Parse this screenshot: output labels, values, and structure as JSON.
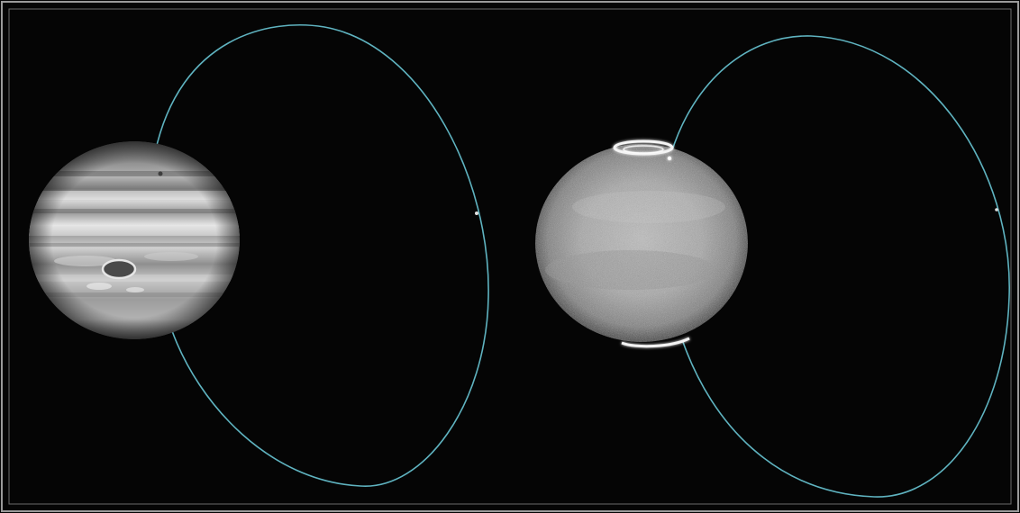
{
  "image": {
    "background_color": "#000000",
    "border_color": "#9a9a9a",
    "orbit_color": "#5fb3c0",
    "panels": [
      {
        "subject": "planet-visible-light",
        "features": [
          "cloud-bands",
          "great-red-spot",
          "moon-orbit-loop",
          "moon-dot"
        ]
      },
      {
        "subject": "planet-ultraviolet-aurora",
        "features": [
          "north-auroral-oval",
          "south-auroral-oval",
          "moon-orbit-loop",
          "moon-footprint-dot"
        ]
      }
    ]
  }
}
